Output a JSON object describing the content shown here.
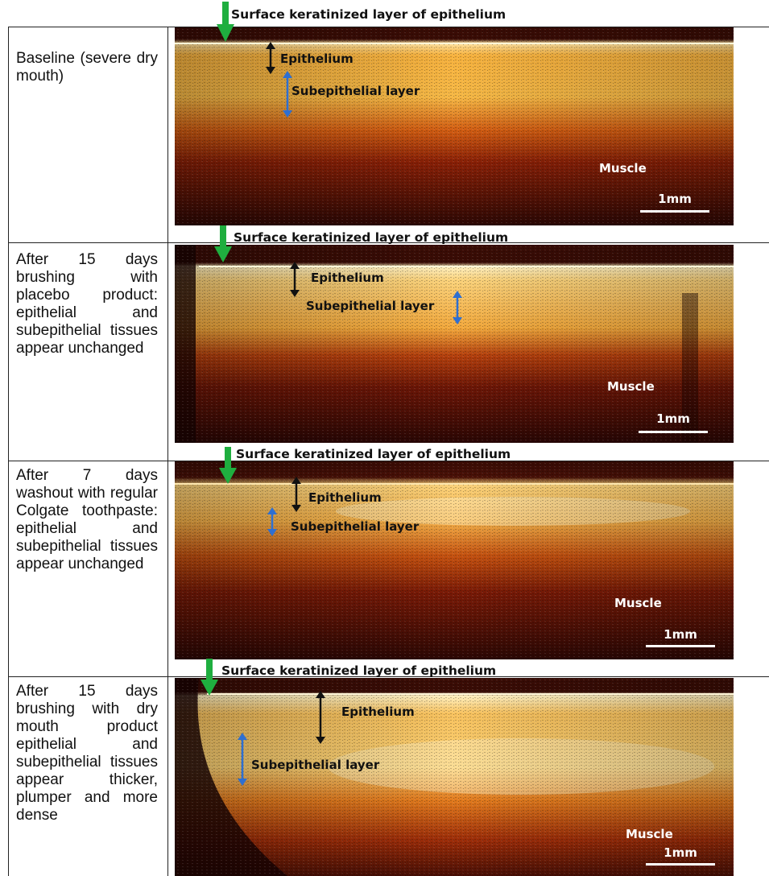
{
  "colors": {
    "surface_arrow": "#1fae3f",
    "epithelium_arrow": "#111111",
    "subepithelial_arrow": "#2e6fd1",
    "scan_dark": "#2a0804",
    "scan_mid": "#c0420b",
    "scan_bright": "#ffe7a0"
  },
  "rows": [
    {
      "description": "Baseline (severe dry mouth)",
      "surface_label": "Surface keratinized layer of epithelium",
      "epithelium_label": "Epithelium",
      "subepithelial_label": "Subepithelial layer",
      "muscle_label": "Muscle",
      "scale_label": "1mm"
    },
    {
      "description": "After 15 days brushing with placebo product: epithelial and subepithelial tissues appear unchanged",
      "surface_label": "Surface keratinized layer of epithelium",
      "epithelium_label": "Epithelium",
      "subepithelial_label": "Subepithelial layer",
      "muscle_label": "Muscle",
      "scale_label": "1mm"
    },
    {
      "description": "After 7 days washout with regular Colgate toothpaste: epithelial and subepithelial tissues appear unchanged",
      "surface_label": "Surface keratinized layer of epithelium",
      "epithelium_label": "Epithelium",
      "subepithelial_label": "Subepithelial layer",
      "muscle_label": "Muscle",
      "scale_label": "1mm"
    },
    {
      "description": "After 15 days brushing with dry mouth product epithelial and subepithelial tissues appear thicker, plumper and more dense",
      "surface_label": "Surface keratinized layer of epithelium",
      "epithelium_label": "Epithelium",
      "subepithelial_label": "Subepithelial layer",
      "muscle_label": "Muscle",
      "scale_label": "1mm"
    }
  ]
}
